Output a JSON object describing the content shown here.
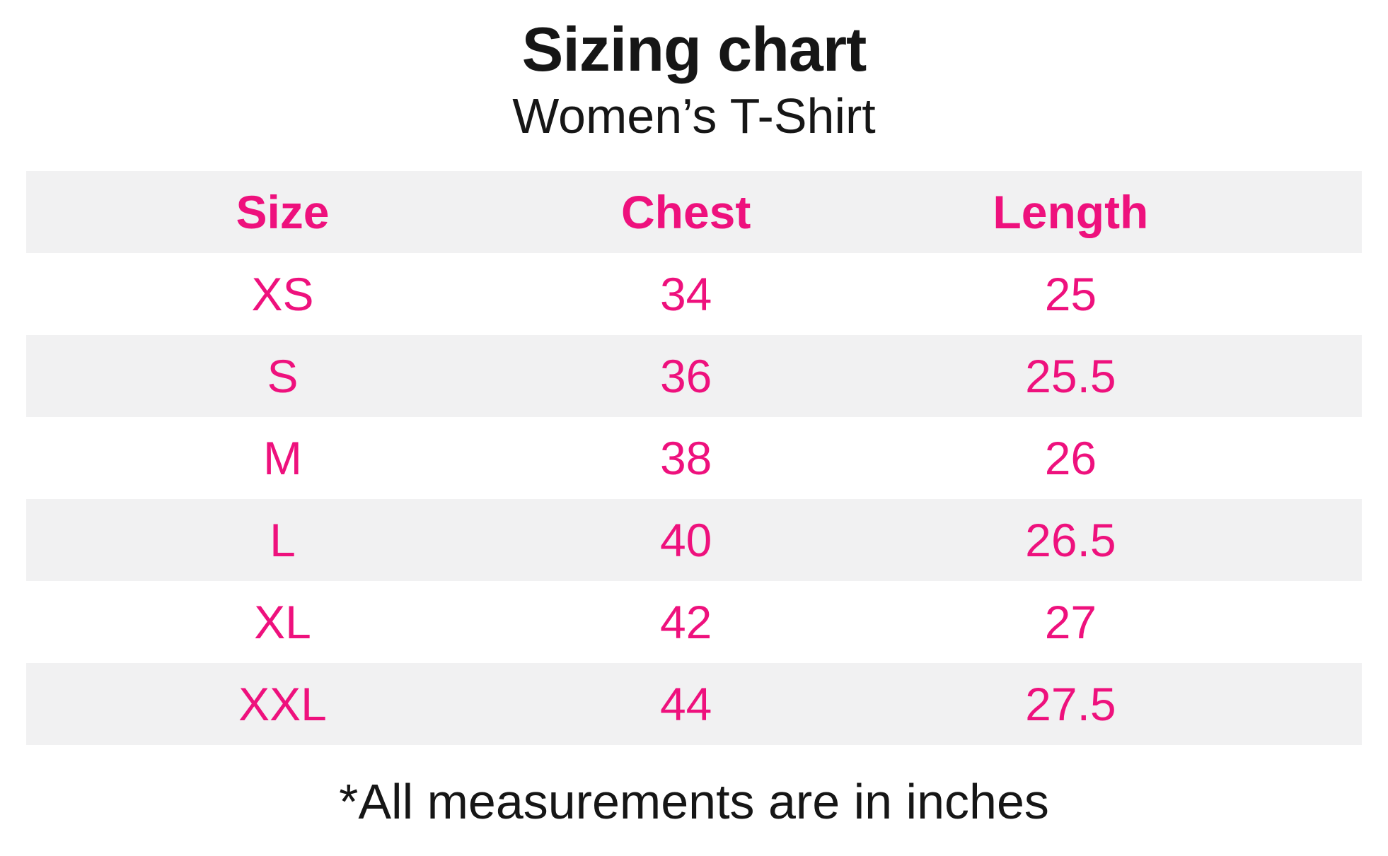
{
  "chart_data": {
    "type": "table",
    "title": "Sizing chart",
    "subtitle": "Women’s T-Shirt",
    "columns": [
      "Size",
      "Chest",
      "Length"
    ],
    "rows": [
      {
        "size": "XS",
        "chest": "34",
        "length": "25"
      },
      {
        "size": "S",
        "chest": "36",
        "length": "25.5"
      },
      {
        "size": "M",
        "chest": "38",
        "length": "26"
      },
      {
        "size": "L",
        "chest": "40",
        "length": "26.5"
      },
      {
        "size": "XL",
        "chest": "42",
        "length": "27"
      },
      {
        "size": "XXL",
        "chest": "44",
        "length": "27.5"
      }
    ],
    "footnote": "*All measurements are in inches",
    "units": "inches",
    "layout_hints": {
      "striped_rows": true,
      "stripe_pattern": "header, S, L, XXL rows shaded",
      "alignment": "center"
    }
  },
  "colors": {
    "accent_pink": "#ee117d",
    "row_gray": "#f1f1f2",
    "text_black": "#161616",
    "background": "#ffffff"
  }
}
